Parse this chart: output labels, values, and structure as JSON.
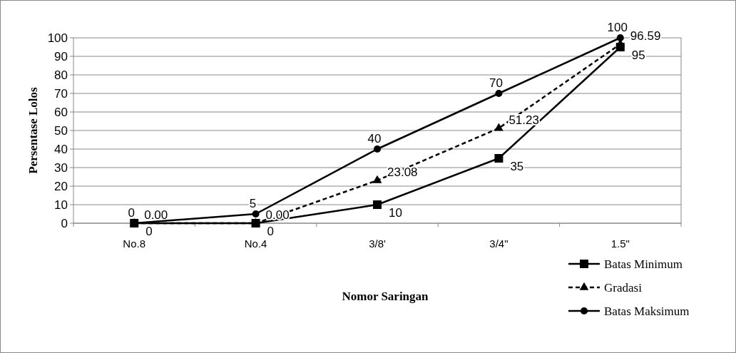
{
  "chart_data": {
    "type": "line",
    "xlabel": "Nomor Saringan",
    "ylabel": "Persentase Lolos",
    "categories": [
      "No.8",
      "No.4",
      "3/8'",
      "3/4\"",
      "1.5\""
    ],
    "series": [
      {
        "name": "Batas Minimum",
        "color": "#000000",
        "marker": "square",
        "line_style": "solid",
        "values": [
          0,
          0,
          10,
          35,
          95
        ],
        "value_labels": [
          "0",
          "0",
          "10",
          "35",
          "95"
        ]
      },
      {
        "name": "Gradasi",
        "color": "#000000",
        "marker": "triangle",
        "line_style": "dashed",
        "values": [
          0,
          0,
          23.08,
          51.23,
          96.59
        ],
        "value_labels": [
          "0.00",
          "0.00",
          "23.08",
          "51.23",
          "96.59"
        ]
      },
      {
        "name": "Batas Maksimum",
        "color": "#000000",
        "marker": "circle",
        "line_style": "solid",
        "values": [
          0,
          5,
          40,
          70,
          100
        ],
        "value_labels": [
          "0",
          "5",
          "40",
          "70",
          "100"
        ]
      }
    ],
    "ylim": [
      0,
      100
    ],
    "yticks": [
      0,
      10,
      20,
      30,
      40,
      50,
      60,
      70,
      80,
      90,
      100
    ],
    "grid": "y",
    "legend": "bottom right"
  }
}
